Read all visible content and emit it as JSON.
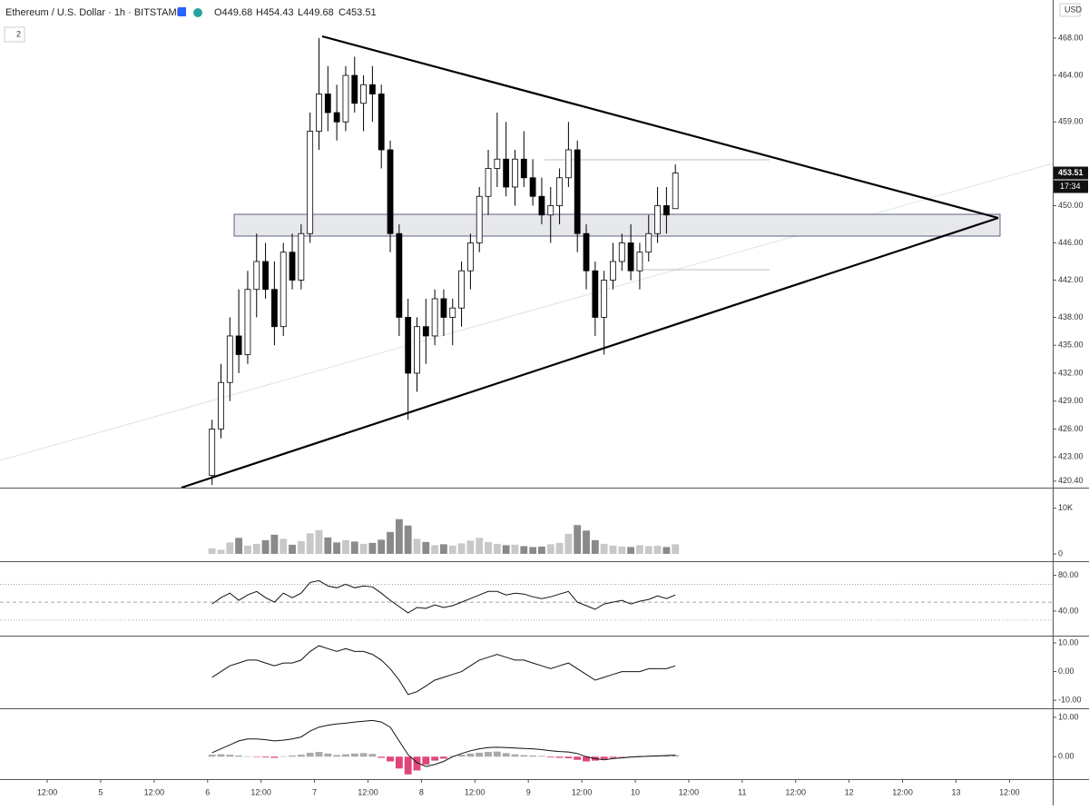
{
  "chart_data": [
    {
      "type": "candlestick",
      "title": "Ethereum / U.S. Dollar · 1h · BITSTAMP",
      "ohlc_legend": [
        "O449.68",
        "H454.43",
        "L449.68",
        "C453.51"
      ],
      "hidden_indicators": 2,
      "currency": "USD",
      "countdown": "17:34",
      "x": [
        37,
        39,
        41,
        43,
        45,
        47,
        49,
        51,
        53,
        55,
        57,
        59,
        61,
        63,
        65,
        67,
        69,
        71,
        73,
        75,
        77,
        79,
        81,
        83,
        85,
        87,
        89,
        91,
        93,
        95,
        97,
        99,
        101,
        103,
        105,
        107,
        109,
        111,
        113,
        115,
        117,
        119,
        121,
        123,
        125,
        127,
        129,
        131,
        133,
        135,
        137,
        139,
        141
      ],
      "open": [
        421,
        426,
        431,
        436,
        434,
        441,
        444,
        441,
        437,
        445,
        442,
        447,
        458,
        462,
        460,
        459,
        464,
        461,
        463,
        462,
        456,
        447,
        438,
        432,
        437,
        436,
        440,
        438,
        439,
        443,
        446,
        451,
        454,
        455,
        452,
        455,
        453,
        451,
        449,
        450,
        453,
        456,
        447,
        443,
        438,
        442,
        444,
        446,
        443,
        445,
        447,
        450,
        449.68
      ],
      "high": [
        427,
        433,
        438,
        441,
        443,
        447,
        446,
        444,
        446,
        447,
        448,
        460,
        468,
        465,
        463,
        465,
        466,
        464,
        465,
        463,
        457,
        448,
        440,
        438,
        440,
        441,
        441,
        440,
        444,
        447,
        452,
        456,
        460,
        459,
        456,
        458,
        455,
        453,
        452,
        454,
        459,
        457,
        448,
        444,
        443,
        446,
        447,
        448,
        446,
        449,
        452,
        452,
        454.43
      ],
      "low": [
        420,
        425,
        429,
        432,
        433,
        438,
        440,
        435,
        436,
        441,
        441,
        446,
        456,
        458,
        457,
        458,
        460,
        458,
        459,
        454,
        445,
        436,
        427,
        430,
        433,
        435,
        436,
        435,
        437,
        441,
        445,
        449,
        452,
        451,
        450,
        452,
        450,
        448,
        446,
        448,
        452,
        445,
        441,
        436,
        434,
        441,
        443,
        442,
        441,
        444,
        446,
        447,
        449.68
      ],
      "close": [
        426,
        431,
        436,
        434,
        441,
        444,
        441,
        437,
        445,
        442,
        447,
        458,
        462,
        460,
        459,
        464,
        461,
        463,
        462,
        456,
        447,
        438,
        432,
        437,
        436,
        440,
        438,
        439,
        443,
        446,
        451,
        454,
        455,
        452,
        455,
        453,
        451,
        449,
        450,
        453,
        456,
        447,
        443,
        438,
        442,
        444,
        446,
        443,
        445,
        447,
        450,
        449,
        453.51
      ],
      "xlim": [
        -10.6,
        225.7
      ],
      "xticks": [
        {
          "value": 0,
          "label": "12:00"
        },
        {
          "value": 12,
          "label": "5"
        },
        {
          "value": 24,
          "label": "12:00"
        },
        {
          "value": 36,
          "label": "6"
        },
        {
          "value": 48,
          "label": "12:00"
        },
        {
          "value": 60,
          "label": "7"
        },
        {
          "value": 72,
          "label": "12:00"
        },
        {
          "value": 84,
          "label": "8"
        },
        {
          "value": 96,
          "label": "12:00"
        },
        {
          "value": 108,
          "label": "9"
        },
        {
          "value": 120,
          "label": "12:00"
        },
        {
          "value": 132,
          "label": "10"
        },
        {
          "value": 144,
          "label": "12:00"
        },
        {
          "value": 156,
          "label": "11"
        },
        {
          "value": 168,
          "label": "12:00"
        },
        {
          "value": 180,
          "label": "12"
        },
        {
          "value": 192,
          "label": "12:00"
        },
        {
          "value": 204,
          "label": "13"
        },
        {
          "value": 216,
          "label": "12:00"
        }
      ],
      "ylim": [
        419.7,
        472.1
      ],
      "yticks": [
        {
          "value": 468,
          "label": "468.00"
        },
        {
          "value": 464,
          "label": "464.00"
        },
        {
          "value": 459,
          "label": "459.00"
        },
        {
          "value": 450,
          "label": "450.00"
        },
        {
          "value": 446,
          "label": "446.00"
        },
        {
          "value": 442,
          "label": "442.00"
        },
        {
          "value": 438,
          "label": "438.00"
        },
        {
          "value": 435,
          "label": "435.00"
        },
        {
          "value": 432,
          "label": "432.00"
        },
        {
          "value": 429,
          "label": "429.00"
        },
        {
          "value": 426,
          "label": "426.00"
        },
        {
          "value": 423,
          "label": "423.00"
        },
        {
          "value": 420.4,
          "label": "420.40"
        }
      ]
    },
    {
      "type": "bar",
      "color": "#8a8a8a",
      "values": [
        1200,
        900,
        2500,
        3500,
        1800,
        2200,
        3000,
        4200,
        3300,
        2000,
        2800,
        4500,
        5200,
        3600,
        2500,
        3000,
        2700,
        2200,
        2400,
        3100,
        4800,
        7600,
        6200,
        3300,
        2600,
        1900,
        2100,
        1800,
        2300,
        2900,
        3500,
        2600,
        2200,
        1900,
        2000,
        1700,
        1500,
        1600,
        2100,
        2400,
        4400,
        6300,
        5100,
        3000,
        2200,
        1800,
        1600,
        1500,
        1900,
        1700,
        1800,
        1500,
        2100
      ],
      "ylim": [
        -1600,
        14300
      ],
      "yticks": [
        {
          "value": 10000,
          "label": "10K"
        },
        0
      ]
    },
    {
      "type": "line",
      "color": "#111",
      "values": [
        48,
        55,
        60,
        52,
        58,
        62,
        55,
        50,
        60,
        55,
        60,
        72,
        74,
        68,
        66,
        70,
        66,
        68,
        67,
        60,
        52,
        45,
        38,
        44,
        43,
        47,
        44,
        46,
        50,
        54,
        58,
        62,
        62,
        58,
        60,
        59,
        56,
        54,
        56,
        59,
        62,
        50,
        46,
        42,
        48,
        50,
        52,
        48,
        51,
        53,
        57,
        54,
        58
      ],
      "bands": [
        70,
        50,
        30
      ],
      "ylim": [
        12.6,
        94.7
      ],
      "yticks": [
        {
          "value": 80,
          "label": "80.00"
        },
        {
          "value": 40,
          "label": "40.00"
        }
      ]
    },
    {
      "type": "line",
      "color": "#111",
      "values": [
        -2,
        0,
        2,
        3,
        4,
        4,
        3,
        2,
        3,
        3,
        4,
        7,
        9,
        8,
        7,
        8,
        7,
        7,
        6,
        4,
        1,
        -3,
        -8,
        -7,
        -5,
        -3,
        -2,
        -1,
        0,
        2,
        4,
        5,
        6,
        5,
        4,
        4,
        3,
        2,
        1,
        2,
        3,
        1,
        -1,
        -3,
        -2,
        -1,
        0,
        0,
        0,
        1,
        1,
        1,
        2
      ],
      "ylim": [
        -12.8,
        12.2
      ],
      "yticks": [
        {
          "value": 10,
          "label": "10.00"
        },
        {
          "value": 0,
          "label": "0.00"
        },
        {
          "value": -10,
          "label": "-10.00"
        }
      ]
    },
    {
      "type": "histogram-line",
      "color": "#111",
      "up_color": "#a9a9a9",
      "down_color": "#e0457b",
      "values": [
        1,
        2,
        3,
        4,
        4.5,
        4.5,
        4.3,
        4,
        4.2,
        4.5,
        5,
        6.5,
        7.5,
        8,
        8.3,
        8.5,
        8.8,
        9,
        9.2,
        8.8,
        7.5,
        4,
        0.5,
        -1.5,
        -2.5,
        -2,
        -1.2,
        0,
        0.8,
        1.5,
        2,
        2.3,
        2.4,
        2.3,
        2.2,
        2.1,
        2,
        1.8,
        1.5,
        1.3,
        1.2,
        0.8,
        0,
        -0.5,
        -0.8,
        -0.5,
        -0.3,
        -0.1,
        0,
        0.1,
        0.2,
        0.3,
        0.4
      ],
      "hist": [
        0.5,
        0.6,
        0.5,
        0.3,
        0.1,
        -0.1,
        -0.2,
        -0.3,
        0.1,
        0.3,
        0.5,
        1,
        1.2,
        0.8,
        0.4,
        0.6,
        0.8,
        0.9,
        0.7,
        -0.3,
        -1.2,
        -3,
        -4.5,
        -3.5,
        -2,
        -1,
        -0.5,
        0.2,
        0.5,
        0.8,
        1,
        1.2,
        1.3,
        0.9,
        0.6,
        0.4,
        0.3,
        0.2,
        -0.2,
        -0.3,
        -0.4,
        -0.8,
        -1.2,
        -1,
        -0.6,
        -0.3,
        -0.1,
        0.1,
        0.2,
        0.2,
        0.3,
        0.3,
        0.4
      ],
      "ylim": [
        -5.7,
        12.05
      ],
      "yticks": [
        {
          "value": 10,
          "label": "10.00"
        },
        {
          "value": 0,
          "label": "0.00"
        }
      ]
    }
  ]
}
